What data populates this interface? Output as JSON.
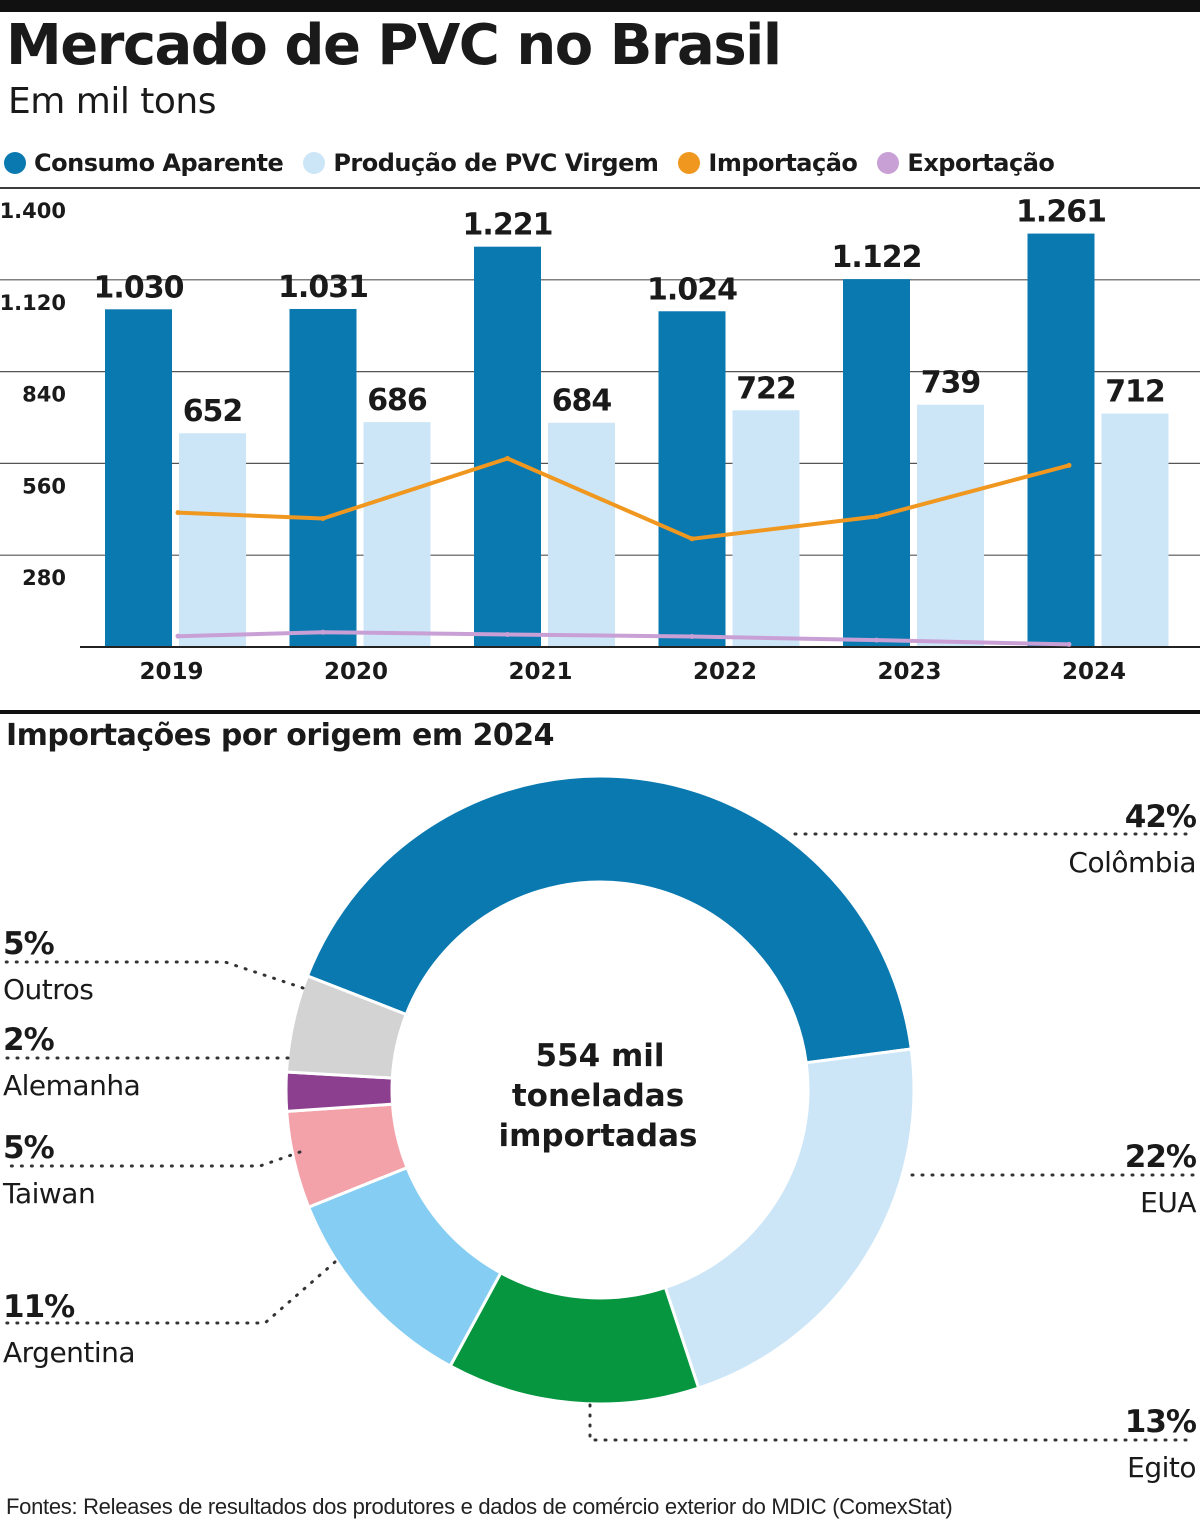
{
  "header": {
    "title": "Mercado de PVC no Brasil",
    "subtitle": "Em mil tons"
  },
  "legend": [
    {
      "label": "Consumo Aparente",
      "color": "#0a79b0"
    },
    {
      "label": "Produção de PVC Virgem",
      "color": "#cce6f8"
    },
    {
      "label": "Importação",
      "color": "#f0971f"
    },
    {
      "label": "Exportação",
      "color": "#c9a0d6"
    }
  ],
  "donut_section": {
    "title": "Importações por origem em 2024",
    "center_line1": "554 mil",
    "center_line2": "toneladas",
    "center_line3": "importadas"
  },
  "footer": {
    "source": "Fontes: Releases de resultados dos produtores e dados de comércio exterior do MDIC (ComexStat)"
  },
  "chart_data": [
    {
      "type": "bar",
      "categories": [
        "2019",
        "2020",
        "2021",
        "2022",
        "2023",
        "2024"
      ],
      "series": [
        {
          "name": "Consumo Aparente",
          "kind": "bar",
          "color": "#0a79b0",
          "values": [
            1030,
            1031,
            1221,
            1024,
            1122,
            1261
          ],
          "value_labels": [
            "1.030",
            "1.031",
            "1.221",
            "1.024",
            "1.122",
            "1.261"
          ]
        },
        {
          "name": "Produção de PVC Virgem",
          "kind": "bar",
          "color": "#cce6f8",
          "values": [
            652,
            686,
            684,
            722,
            739,
            712
          ],
          "value_labels": [
            "652",
            "686",
            "684",
            "722",
            "739",
            "712"
          ]
        },
        {
          "name": "Importação",
          "kind": "line",
          "color": "#f0971f",
          "values": [
            410,
            392,
            575,
            330,
            398,
            554
          ]
        },
        {
          "name": "Exportação",
          "kind": "line",
          "color": "#c9a0d6",
          "values": [
            33,
            45,
            38,
            32,
            21,
            8
          ]
        }
      ],
      "yticks": [
        280,
        560,
        840,
        1120,
        1400
      ],
      "ytick_labels": [
        "280",
        "560",
        "840",
        "1.120",
        "1.400"
      ],
      "ylim": [
        0,
        1400
      ],
      "grid": true,
      "legend_position": "top"
    },
    {
      "type": "pie",
      "style": "donut",
      "slices": [
        {
          "label": "Colômbia",
          "value": 42,
          "pct_label": "42%",
          "color": "#0a79b0"
        },
        {
          "label": "EUA",
          "value": 22,
          "pct_label": "22%",
          "color": "#cce6f8"
        },
        {
          "label": "Egito",
          "value": 13,
          "pct_label": "13%",
          "color": "#05963f"
        },
        {
          "label": "Argentina",
          "value": 11,
          "pct_label": "11%",
          "color": "#85cdf2"
        },
        {
          "label": "Taiwan",
          "value": 5,
          "pct_label": "5%",
          "color": "#f2a2a8"
        },
        {
          "label": "Alemanha",
          "value": 2,
          "pct_label": "2%",
          "color": "#8c3e8f"
        },
        {
          "label": "Outros",
          "value": 5,
          "pct_label": "5%",
          "color": "#d3d3d3"
        }
      ]
    }
  ]
}
